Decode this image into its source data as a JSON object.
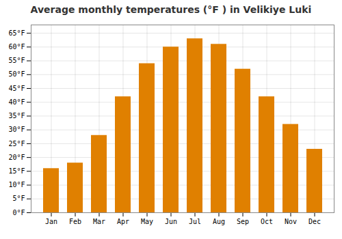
{
  "chart_data": {
    "type": "bar",
    "title": "Average monthly temperatures (°F ) in Velikiye Luki",
    "categories": [
      "Jan",
      "Feb",
      "Mar",
      "Apr",
      "May",
      "Jun",
      "Jul",
      "Aug",
      "Sep",
      "Oct",
      "Nov",
      "Dec"
    ],
    "values": [
      16,
      18,
      28,
      42,
      54,
      60,
      63,
      61,
      52,
      42,
      32,
      23
    ],
    "color": "#E08000",
    "ylim": [
      0,
      68
    ],
    "yticks": [
      {
        "value": 0,
        "label": "0°F"
      },
      {
        "value": 5,
        "label": "5°F"
      },
      {
        "value": 10,
        "label": "10°F"
      },
      {
        "value": 15,
        "label": "15°F"
      },
      {
        "value": 20,
        "label": "20°F"
      },
      {
        "value": 25,
        "label": "25°F"
      },
      {
        "value": 30,
        "label": "30°F"
      },
      {
        "value": 35,
        "label": "35°F"
      },
      {
        "value": 40,
        "label": "40°F"
      },
      {
        "value": 45,
        "label": "45°F"
      },
      {
        "value": 50,
        "label": "50°F"
      },
      {
        "value": 55,
        "label": "55°F"
      },
      {
        "value": 60,
        "label": "60°F"
      },
      {
        "value": 65,
        "label": "65°F"
      }
    ],
    "grid": true
  }
}
